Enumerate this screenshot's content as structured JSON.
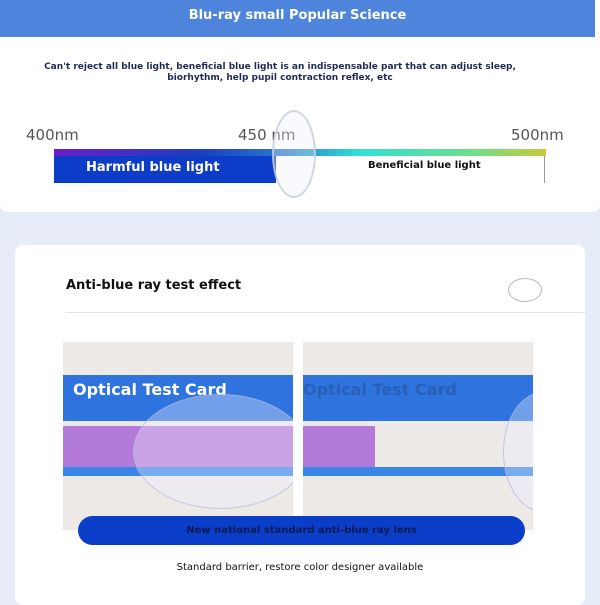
{
  "science": {
    "title": "Blu-ray small Popular Science",
    "intro": "Can't reject all blue light, beneficial blue light is an indispensable part that can adjust sleep, biorhythm, help pupil contraction reflex, etc",
    "labels": [
      "400nm",
      "450 nm",
      "500nm"
    ],
    "harmful": "Harmful blue light",
    "beneficial": "Beneficial blue light"
  },
  "test": {
    "title": "Anti-blue ray test effect",
    "card_text": "Optical Test Card",
    "badge": "New national standard anti-blue ray lens",
    "footer": "Standard barrier, restore color designer available"
  },
  "colors": {
    "header": "#4f84dc",
    "harmful": "#0d3dc8"
  }
}
